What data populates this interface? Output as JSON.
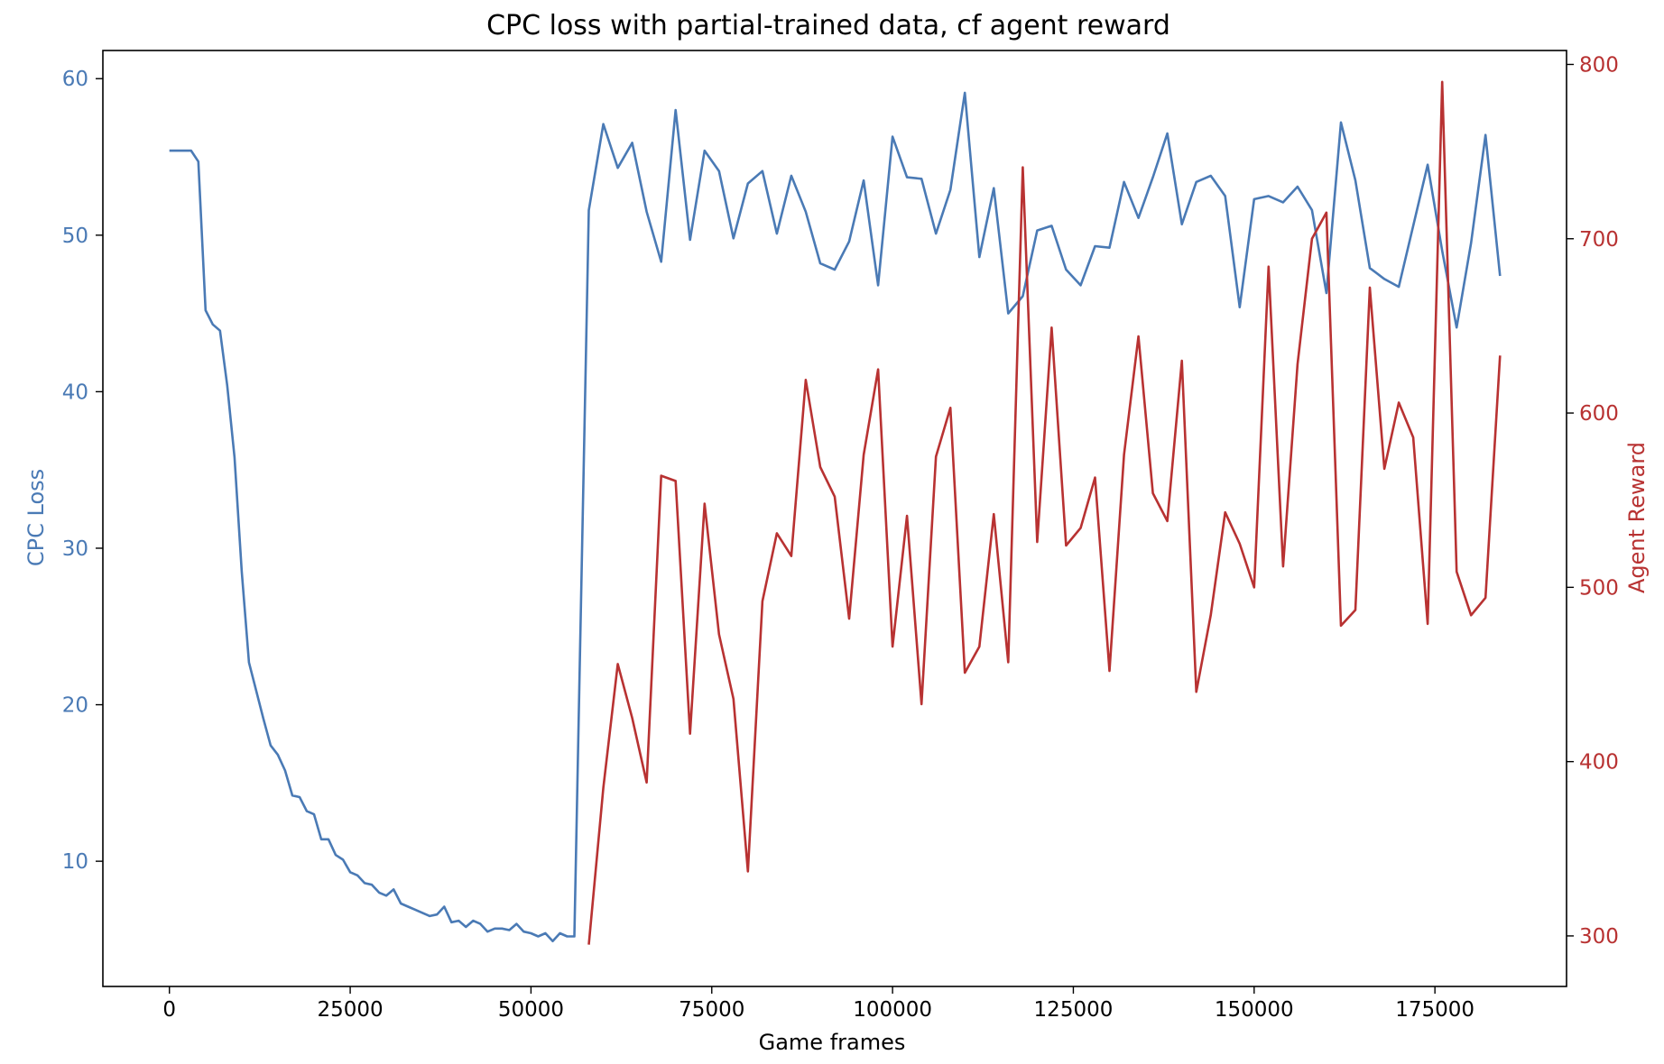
{
  "chart_data": {
    "type": "line",
    "title": "CPC loss with partial-trained data, cf agent reward",
    "xlabel": "Game frames",
    "x_ticks": [
      "0",
      "25000",
      "50000",
      "75000",
      "100000",
      "125000",
      "150000",
      "175000"
    ],
    "x_tick_values": [
      0,
      25000,
      50000,
      75000,
      100000,
      125000,
      150000,
      175000
    ],
    "xlim": [
      -9200,
      193200
    ],
    "grid": false,
    "colors": {
      "loss": "#4a7ab5",
      "reward": "#b83232"
    },
    "left_axis": {
      "label": "CPC Loss",
      "ylim": [
        2.0,
        61.8
      ],
      "ticks": [
        "10",
        "20",
        "30",
        "40",
        "50",
        "60"
      ],
      "tick_values": [
        10,
        20,
        30,
        40,
        50,
        60
      ]
    },
    "right_axis": {
      "label": "Agent Reward",
      "ylim": [
        271,
        808
      ],
      "ticks": [
        "300",
        "400",
        "500",
        "600",
        "700",
        "800"
      ],
      "tick_values": [
        300,
        400,
        500,
        600,
        700,
        800
      ]
    },
    "series": [
      {
        "name": "CPC Loss",
        "axis": "left",
        "x": [
          0,
          1000,
          2000,
          3000,
          4000,
          5000,
          6000,
          7000,
          8000,
          9000,
          10000,
          11000,
          12000,
          13000,
          14000,
          15000,
          16000,
          17000,
          18000,
          19000,
          20000,
          21000,
          22000,
          23000,
          24000,
          25000,
          26000,
          27000,
          28000,
          29000,
          30000,
          31000,
          32000,
          33000,
          34000,
          35000,
          36000,
          37000,
          38000,
          39000,
          40000,
          41000,
          42000,
          43000,
          44000,
          45000,
          46000,
          47000,
          48000,
          49000,
          50000,
          51000,
          52000,
          53000,
          54000,
          55000,
          56000,
          58000,
          60000,
          62000,
          64000,
          66000,
          68000,
          70000,
          72000,
          74000,
          76000,
          78000,
          80000,
          82000,
          84000,
          86000,
          88000,
          90000,
          92000,
          94000,
          96000,
          98000,
          100000,
          102000,
          104000,
          106000,
          108000,
          110000,
          112000,
          114000,
          116000,
          118000,
          120000,
          122000,
          124000,
          126000,
          128000,
          130000,
          132000,
          134000,
          136000,
          138000,
          140000,
          142000,
          144000,
          146000,
          148000,
          150000,
          152000,
          154000,
          156000,
          158000,
          160000,
          162000,
          164000,
          166000,
          168000,
          170000,
          172000,
          174000,
          176000,
          178000,
          180000,
          182000,
          184000
        ],
        "values": [
          55.4,
          55.4,
          55.4,
          55.4,
          54.7,
          45.2,
          44.3,
          43.9,
          40.4,
          35.8,
          28.5,
          22.7,
          20.9,
          19.1,
          17.4,
          16.8,
          15.8,
          14.2,
          14.1,
          13.2,
          13.0,
          11.4,
          11.4,
          10.4,
          10.1,
          9.3,
          9.1,
          8.6,
          8.5,
          8.0,
          7.8,
          8.2,
          7.3,
          7.1,
          6.9,
          6.7,
          6.5,
          6.6,
          7.1,
          6.1,
          6.2,
          5.8,
          6.2,
          6.0,
          5.5,
          5.7,
          5.7,
          5.6,
          6.0,
          5.5,
          5.4,
          5.2,
          5.4,
          4.9,
          5.4,
          5.2,
          5.2,
          51.6,
          57.1,
          54.3,
          55.9,
          51.5,
          48.3,
          58.0,
          49.7,
          55.4,
          54.1,
          49.8,
          53.3,
          54.1,
          50.1,
          53.8,
          51.5,
          48.2,
          47.8,
          49.6,
          53.5,
          46.8,
          56.3,
          53.7,
          53.6,
          50.1,
          52.9,
          59.1,
          48.6,
          53.0,
          45.0,
          46.1,
          50.3,
          50.6,
          47.8,
          46.8,
          49.3,
          49.2,
          53.4,
          51.1,
          53.7,
          56.5,
          50.7,
          53.4,
          53.8,
          52.5,
          45.4,
          52.3,
          52.5,
          52.1,
          53.1,
          51.6,
          46.3,
          57.2,
          53.5,
          47.9,
          47.2,
          46.7,
          50.6,
          54.5,
          49.0,
          44.1,
          49.5,
          56.4,
          47.4
        ]
      },
      {
        "name": "Agent Reward",
        "axis": "right",
        "x": [
          58000,
          60000,
          62000,
          64000,
          66000,
          68000,
          70000,
          72000,
          74000,
          76000,
          78000,
          80000,
          82000,
          84000,
          86000,
          88000,
          90000,
          92000,
          94000,
          96000,
          98000,
          100000,
          102000,
          104000,
          106000,
          108000,
          110000,
          112000,
          114000,
          116000,
          118000,
          120000,
          122000,
          124000,
          126000,
          128000,
          130000,
          132000,
          134000,
          136000,
          138000,
          140000,
          142000,
          144000,
          146000,
          148000,
          150000,
          152000,
          154000,
          156000,
          158000,
          160000,
          162000,
          164000,
          166000,
          168000,
          170000,
          172000,
          174000,
          176000,
          178000,
          180000,
          182000,
          184000
        ],
        "values": [
          295,
          385,
          456,
          425,
          388,
          564,
          561,
          416,
          548,
          473,
          436,
          337,
          492,
          531,
          518,
          619,
          569,
          552,
          482,
          576,
          625,
          466,
          541,
          433,
          575,
          603,
          451,
          466,
          542,
          457,
          741,
          526,
          649,
          524,
          534,
          563,
          452,
          576,
          644,
          554,
          538,
          630,
          440,
          484,
          543,
          525,
          500,
          684,
          512,
          628,
          700,
          715,
          478,
          487,
          672,
          568,
          606,
          586,
          479,
          790,
          509,
          484,
          494,
          633
        ]
      }
    ]
  }
}
